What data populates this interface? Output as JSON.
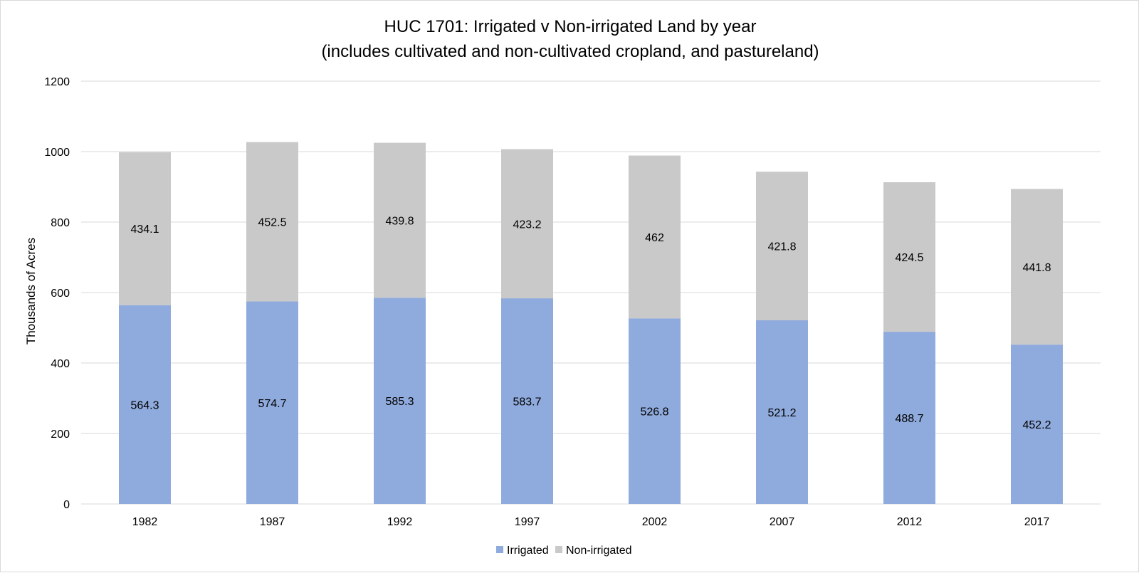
{
  "chart_data": {
    "type": "bar",
    "stacked": true,
    "title": "HUC 1701: Irrigated v Non-irrigated Land by year",
    "subtitle": "(includes cultivated and non-cultivated cropland, and pastureland)",
    "xlabel": "",
    "ylabel": "Thousands of Acres",
    "ylim": [
      0,
      1200
    ],
    "yticks": [
      0,
      200,
      400,
      600,
      800,
      1000,
      1200
    ],
    "grid": true,
    "legend_position": "bottom",
    "categories": [
      "1982",
      "1987",
      "1992",
      "1997",
      "2002",
      "2007",
      "2012",
      "2017"
    ],
    "series": [
      {
        "name": "Irrigated",
        "color": "#8faadc",
        "values": [
          564.3,
          574.7,
          585.3,
          583.7,
          526.8,
          521.2,
          488.7,
          452.2
        ]
      },
      {
        "name": "Non-irrigated",
        "color": "#c9c9c9",
        "values": [
          434.1,
          452.5,
          439.8,
          423.2,
          462,
          421.8,
          424.5,
          441.8
        ]
      }
    ]
  }
}
